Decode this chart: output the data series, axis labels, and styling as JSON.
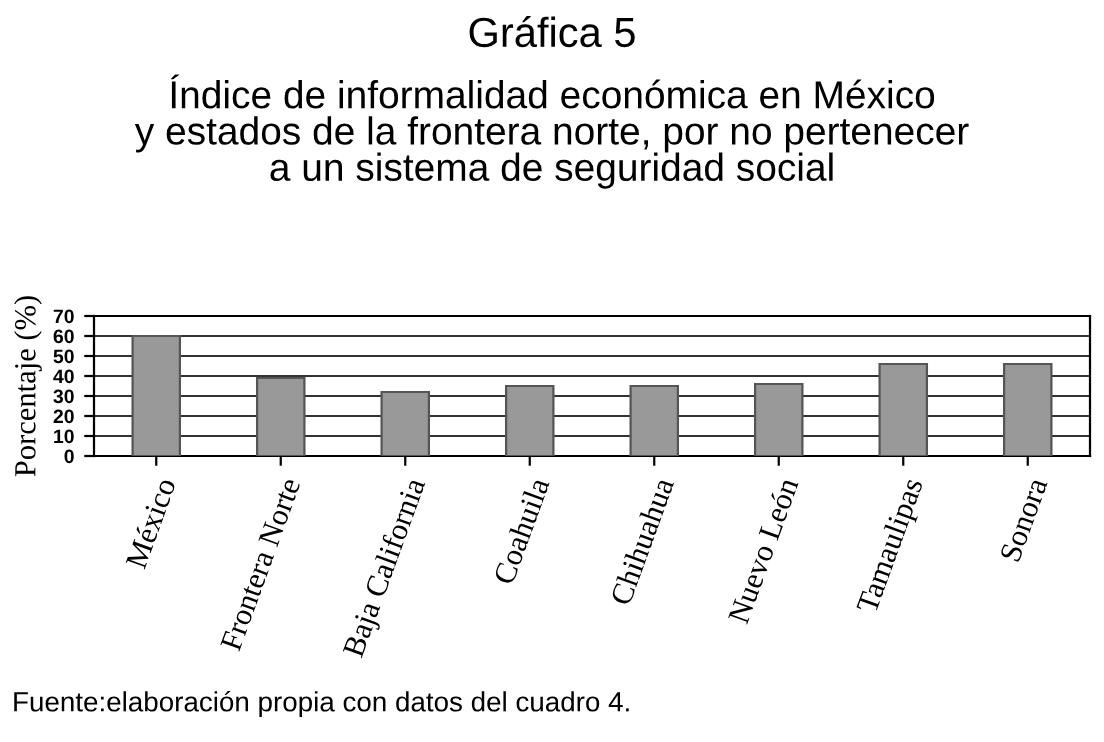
{
  "chart_data": {
    "type": "bar",
    "title": "Gráfica 5",
    "subtitle": "Índice de informalidad económica en México\ny estados de la frontera norte, por no pertenecer\na un sistema de seguridad social",
    "ylabel": "Porcentaje (%)",
    "categories": [
      "México",
      "Frontera Norte",
      "Baja California",
      "Coahuila",
      "Chihuahua",
      "Nuevo León",
      "Tamaulipas",
      "Sonora"
    ],
    "values": [
      60,
      39,
      32,
      35,
      35,
      36,
      46,
      46
    ],
    "color": "#999999",
    "ylim": [
      0,
      70
    ],
    "yticks": [
      0,
      10,
      20,
      30,
      40,
      50,
      60,
      70
    ],
    "grid": "y",
    "legend": false,
    "annotations": [
      "Fuente:elaboración propia con datos del cuadro 4."
    ]
  }
}
